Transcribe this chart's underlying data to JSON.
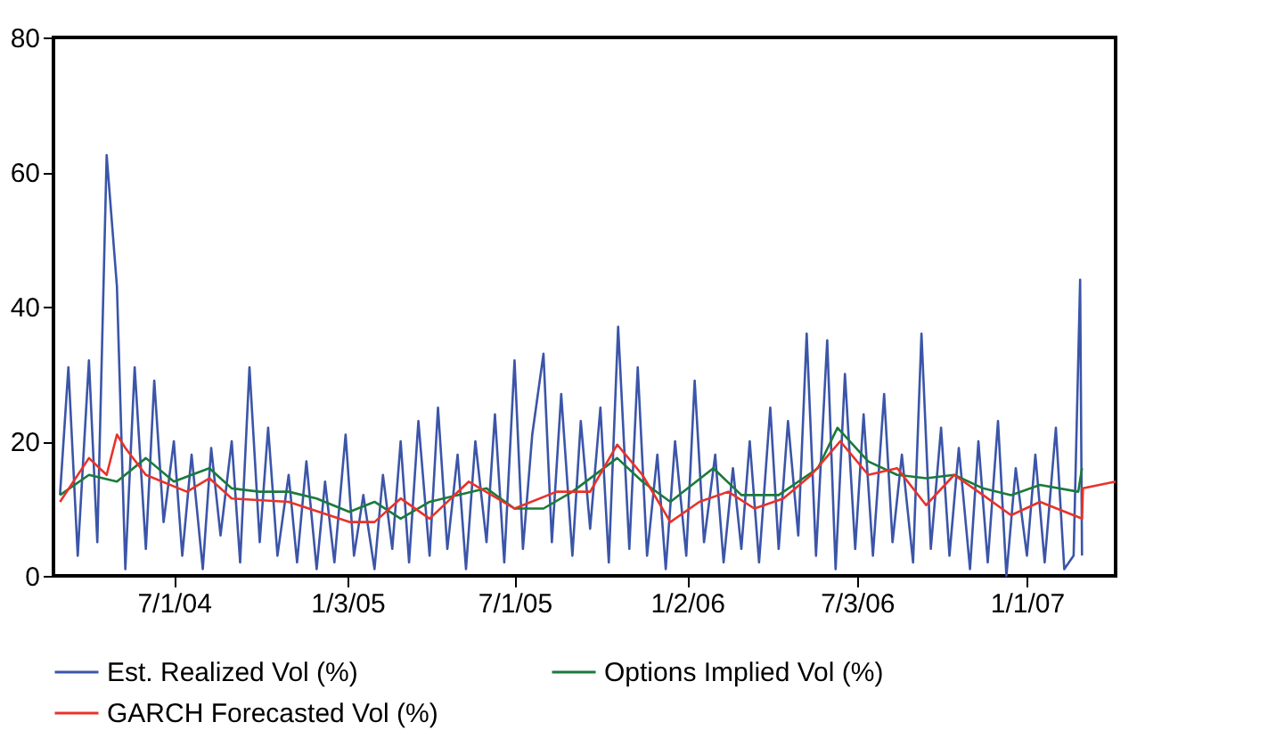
{
  "chart_data": {
    "type": "line",
    "xlim": [
      "2004-02-23",
      "2007-04-06"
    ],
    "ylim": [
      0,
      80
    ],
    "yticks": [
      0,
      20,
      40,
      60,
      80
    ],
    "xticks": [
      {
        "value": "2004-07-01",
        "label": "7/1/04"
      },
      {
        "value": "2005-01-03",
        "label": "1/3/05"
      },
      {
        "value": "2005-07-01",
        "label": "7/1/05"
      },
      {
        "value": "2006-01-02",
        "label": "1/2/06"
      },
      {
        "value": "2006-07-03",
        "label": "7/3/06"
      },
      {
        "value": "2007-01-01",
        "label": "1/1/07"
      }
    ],
    "grid": false,
    "legend": "bottom",
    "marker": "none",
    "line_style": "solid",
    "series": [
      {
        "name": "Est. Realized Vol (%)",
        "color": "#3b55a8",
        "x": [
          "2004-03-01",
          "2004-03-10",
          "2004-03-20",
          "2004-04-01",
          "2004-04-10",
          "2004-04-20",
          "2004-05-01",
          "2004-05-10",
          "2004-05-20",
          "2004-06-01",
          "2004-06-10",
          "2004-06-20",
          "2004-07-01",
          "2004-07-10",
          "2004-07-20",
          "2004-08-01",
          "2004-08-10",
          "2004-08-20",
          "2004-09-01",
          "2004-09-10",
          "2004-09-20",
          "2004-10-01",
          "2004-10-10",
          "2004-10-20",
          "2004-11-01",
          "2004-11-10",
          "2004-11-20",
          "2004-12-01",
          "2004-12-10",
          "2004-12-20",
          "2005-01-01",
          "2005-01-10",
          "2005-01-20",
          "2005-02-01",
          "2005-02-10",
          "2005-02-20",
          "2005-03-01",
          "2005-03-10",
          "2005-03-20",
          "2005-04-01",
          "2005-04-10",
          "2005-04-20",
          "2005-05-01",
          "2005-05-10",
          "2005-05-20",
          "2005-06-01",
          "2005-06-10",
          "2005-06-20",
          "2005-07-01",
          "2005-07-10",
          "2005-07-20",
          "2005-08-01",
          "2005-08-10",
          "2005-08-20",
          "2005-09-01",
          "2005-09-10",
          "2005-09-20",
          "2005-10-01",
          "2005-10-10",
          "2005-10-20",
          "2005-11-01",
          "2005-11-10",
          "2005-11-20",
          "2005-12-01",
          "2005-12-10",
          "2005-12-20",
          "2006-01-01",
          "2006-01-10",
          "2006-01-20",
          "2006-02-01",
          "2006-02-10",
          "2006-02-20",
          "2006-03-01",
          "2006-03-10",
          "2006-03-20",
          "2006-04-01",
          "2006-04-10",
          "2006-04-20",
          "2006-05-01",
          "2006-05-10",
          "2006-05-20",
          "2006-06-01",
          "2006-06-10",
          "2006-06-20",
          "2006-07-01",
          "2006-07-10",
          "2006-07-20",
          "2006-08-01",
          "2006-08-10",
          "2006-08-20",
          "2006-09-01",
          "2006-09-10",
          "2006-09-20",
          "2006-10-01",
          "2006-10-10",
          "2006-10-20",
          "2006-11-01",
          "2006-11-10",
          "2006-11-20",
          "2006-12-01",
          "2006-12-10",
          "2006-12-20",
          "2007-01-01",
          "2007-01-10",
          "2007-01-20",
          "2007-02-01",
          "2007-02-10",
          "2007-02-20",
          "2007-02-27",
          "2007-03-01"
        ],
        "values": [
          12,
          31,
          3,
          32,
          5,
          62.5,
          43,
          1,
          31,
          4,
          29,
          8,
          20,
          3,
          18,
          1,
          19,
          6,
          20,
          2,
          31,
          5,
          22,
          3,
          15,
          2,
          17,
          1,
          14,
          2,
          21,
          3,
          12,
          1,
          15,
          4,
          20,
          2,
          23,
          3,
          25,
          4,
          18,
          1,
          20,
          5,
          24,
          2,
          32,
          4,
          21,
          33,
          5,
          27,
          3,
          23,
          7,
          25,
          2,
          37,
          4,
          31,
          3,
          18,
          1,
          20,
          3,
          29,
          5,
          18,
          2,
          16,
          4,
          20,
          2,
          25,
          4,
          23,
          6,
          36,
          3,
          35,
          1,
          30,
          4,
          24,
          3,
          27,
          5,
          18,
          2,
          36,
          4,
          22,
          3,
          19,
          1,
          20,
          2,
          23,
          0,
          16,
          3,
          18,
          2,
          22,
          1,
          3,
          44,
          3
        ]
      },
      {
        "name": "Options Implied Vol (%)",
        "color": "#1a7a3a",
        "x": [
          "2004-03-01",
          "2004-04-01",
          "2004-05-01",
          "2004-06-01",
          "2004-07-01",
          "2004-08-08",
          "2004-09-01",
          "2004-10-01",
          "2004-11-01",
          "2004-12-01",
          "2005-01-05",
          "2005-02-01",
          "2005-03-01",
          "2005-04-01",
          "2005-05-01",
          "2005-06-01",
          "2005-07-01",
          "2005-08-01",
          "2005-09-01",
          "2005-10-19",
          "2005-11-15",
          "2005-12-15",
          "2006-01-30",
          "2006-03-01",
          "2006-04-10",
          "2006-05-22",
          "2006-06-12",
          "2006-07-15",
          "2006-08-15",
          "2006-09-15",
          "2006-10-15",
          "2006-11-15",
          "2006-12-15",
          "2007-01-15",
          "2007-02-25",
          "2007-03-01"
        ],
        "values": [
          12,
          15,
          14,
          17.5,
          14,
          16,
          13,
          12.5,
          12.5,
          11.5,
          9.5,
          11,
          8.5,
          11,
          12,
          13,
          10,
          10,
          12.5,
          17.5,
          14,
          11,
          16,
          12,
          12,
          16,
          22,
          17,
          15,
          14.5,
          15,
          13,
          12,
          13.5,
          12.5,
          16
        ]
      },
      {
        "name": "GARCH Forecasted Vol (%)",
        "color": "#e8322a",
        "x": [
          "2004-03-01",
          "2004-04-01",
          "2004-04-20",
          "2004-05-01",
          "2004-05-10",
          "2004-06-01",
          "2004-07-15",
          "2004-08-08",
          "2004-09-01",
          "2004-11-01",
          "2005-01-05",
          "2005-02-01",
          "2005-03-01",
          "2005-04-01",
          "2005-05-13",
          "2005-07-01",
          "2005-08-15",
          "2005-09-20",
          "2005-10-19",
          "2005-11-15",
          "2005-12-15",
          "2006-01-15",
          "2006-02-15",
          "2006-03-15",
          "2006-04-15",
          "2006-05-15",
          "2006-06-15",
          "2006-07-15",
          "2006-08-15",
          "2006-09-15",
          "2006-10-15",
          "2006-11-15",
          "2006-12-15",
          "2007-01-15",
          "2007-03-01",
          "2007-03-02",
          "2007-04-06"
        ],
        "values": [
          11,
          17.5,
          15,
          21,
          19,
          15,
          12.5,
          14.5,
          11.5,
          11,
          8,
          8,
          11.5,
          8.5,
          14,
          10,
          12.5,
          12.5,
          19.5,
          15,
          8,
          11,
          12.5,
          10,
          11.5,
          15,
          20,
          15,
          16,
          10.5,
          15,
          12,
          9,
          11,
          8.5,
          13,
          14
        ]
      }
    ]
  }
}
